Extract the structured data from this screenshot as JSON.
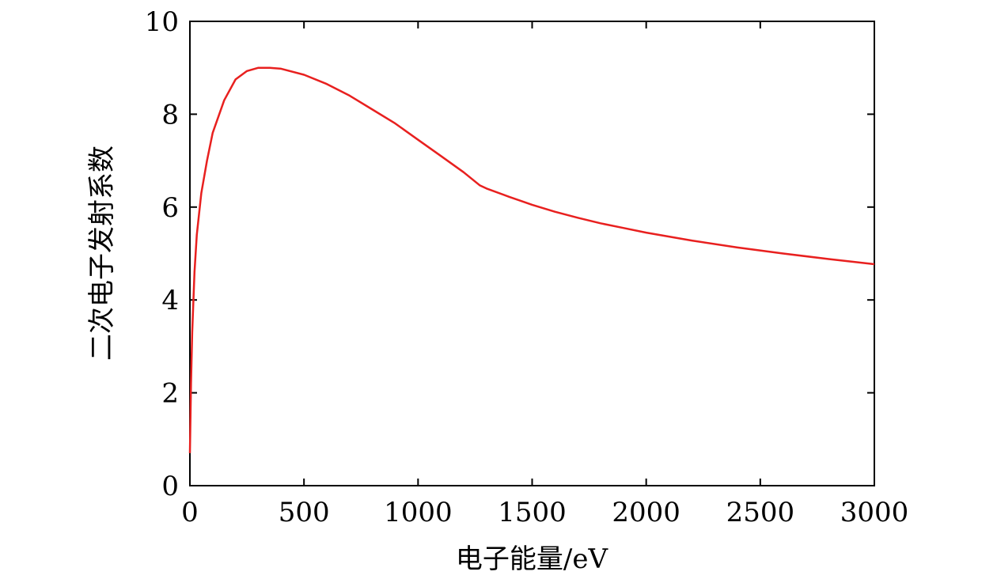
{
  "chart_data": {
    "type": "line",
    "xlabel": "电子能量/eV",
    "ylabel": "二次电子发射系数",
    "xlim": [
      0,
      3000
    ],
    "ylim": [
      0,
      10
    ],
    "xticks": [
      0,
      500,
      1000,
      1500,
      2000,
      2500,
      3000
    ],
    "yticks": [
      0,
      2,
      4,
      6,
      8,
      10
    ],
    "grid": false,
    "series": [
      {
        "color": "#e8201f",
        "x": [
          0,
          5,
          10,
          20,
          30,
          50,
          75,
          100,
          150,
          200,
          250,
          300,
          350,
          400,
          500,
          600,
          700,
          800,
          900,
          1000,
          1100,
          1200,
          1270,
          1300,
          1400,
          1500,
          1600,
          1700,
          1800,
          1900,
          2000,
          2200,
          2400,
          2600,
          2800,
          3000
        ],
        "y": [
          0.7,
          2.2,
          3.3,
          4.6,
          5.4,
          6.3,
          7.0,
          7.6,
          8.3,
          8.75,
          8.93,
          9.0,
          9.0,
          8.98,
          8.85,
          8.65,
          8.4,
          8.1,
          7.8,
          7.45,
          7.1,
          6.75,
          6.47,
          6.4,
          6.22,
          6.05,
          5.9,
          5.77,
          5.65,
          5.55,
          5.45,
          5.28,
          5.13,
          5.0,
          4.88,
          4.77
        ]
      }
    ]
  }
}
